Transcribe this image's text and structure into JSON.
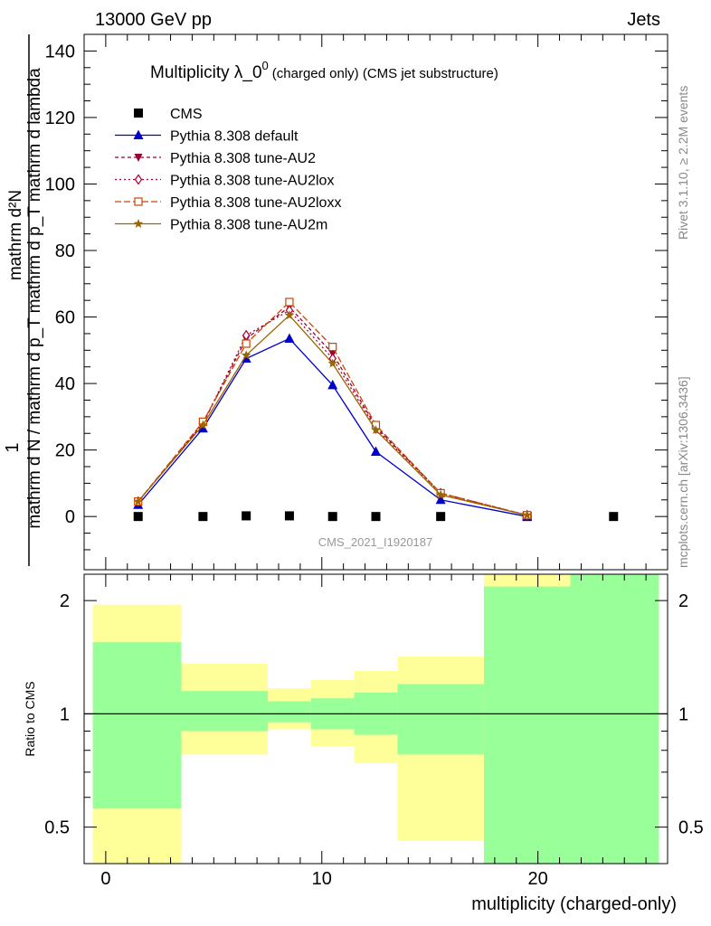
{
  "header": {
    "left": "13000 GeV pp",
    "right": "Jets"
  },
  "side_labels": {
    "rivet": "Rivet 3.1.10, ≥ 2.2M events",
    "mcplots": "mcplots.cern.ch [arXiv:1306.3436]"
  },
  "chart_data": [
    {
      "type": "line",
      "title_main": "Multiplicity λ_0",
      "title_sup": "0",
      "title_tail": "(charged only) (CMS jet substructure)",
      "analysis_id": "CMS_2021_I1920187",
      "ylabel": {
        "numerator": "mathrm d²N",
        "denominator": "mathrm d N / mathrm d p_T mathrm d p_T mathrm d lambda",
        "prefix": "1"
      },
      "ylim": [
        -16,
        145
      ],
      "yticks": [
        0,
        20,
        40,
        60,
        80,
        100,
        120,
        140
      ],
      "xlim": [
        -1,
        26
      ],
      "series": [
        {
          "name": "CMS",
          "color": "#000000",
          "marker": "square",
          "dash": "none",
          "x": [
            1.5,
            4.5,
            6.5,
            8.5,
            10.5,
            12.5,
            15.5,
            19.5,
            23.5
          ],
          "y": [
            0,
            0,
            0.2,
            0.2,
            0,
            0,
            0,
            0,
            0
          ]
        },
        {
          "name": "Pythia 8.308 default",
          "color": "#0000cc",
          "marker": "triangle-up",
          "dash": "solid",
          "x": [
            1.5,
            4.5,
            6.5,
            8.5,
            10.5,
            12.5,
            15.5,
            19.5
          ],
          "y": [
            3.5,
            26.5,
            47.5,
            53.5,
            39.5,
            19.5,
            5,
            0
          ]
        },
        {
          "name": "Pythia 8.308 tune-AU2",
          "color": "#990033",
          "marker": "triangle-down",
          "dash": "4,3",
          "x": [
            1.5,
            4.5,
            6.5,
            8.5,
            10.5,
            12.5,
            15.5,
            19.5
          ],
          "y": [
            4.5,
            28,
            53.5,
            63,
            49,
            27,
            7,
            0.4
          ]
        },
        {
          "name": "Pythia 8.308 tune-AU2lox",
          "color": "#aa0033",
          "marker": "diamond",
          "dash": "2,3",
          "x": [
            1.5,
            4.5,
            6.5,
            8.5,
            10.5,
            12.5,
            15.5,
            19.5
          ],
          "y": [
            4.5,
            28,
            54.5,
            62,
            47.5,
            26.5,
            7,
            0.4
          ]
        },
        {
          "name": "Pythia 8.308 tune-AU2loxx",
          "color": "#cc4400",
          "marker": "square-open",
          "dash": "7,3",
          "x": [
            1.5,
            4.5,
            6.5,
            8.5,
            10.5,
            12.5,
            15.5,
            19.5
          ],
          "y": [
            4.5,
            28.5,
            52,
            64.5,
            51,
            27.5,
            7,
            0.4
          ]
        },
        {
          "name": "Pythia 8.308 tune-AU2m",
          "color": "#996600",
          "marker": "star",
          "dash": "solid",
          "x": [
            1.5,
            4.5,
            6.5,
            8.5,
            10.5,
            12.5,
            15.5,
            19.5
          ],
          "y": [
            4.5,
            27.5,
            48.5,
            60.5,
            46,
            26,
            6.5,
            0.4
          ]
        }
      ]
    },
    {
      "type": "area",
      "ylabel": "Ratio to CMS",
      "xlabel": "multiplicity (charged-only)",
      "yscale": "log",
      "ylim": [
        0.4,
        2.35
      ],
      "yticks": [
        0.5,
        1,
        2
      ],
      "xticks": [
        0,
        10,
        20
      ],
      "xlim": [
        -1,
        26
      ],
      "reference_line": 1,
      "bands": [
        {
          "x0": -0.6,
          "x1": 3.5,
          "inner": [
            0.56,
            1.55
          ],
          "outer": [
            0.35,
            1.95
          ]
        },
        {
          "x0": 3.5,
          "x1": 7.5,
          "inner": [
            0.9,
            1.15
          ],
          "outer": [
            0.78,
            1.36
          ]
        },
        {
          "x0": 7.5,
          "x1": 9.5,
          "inner": [
            0.95,
            1.08
          ],
          "outer": [
            0.91,
            1.17
          ]
        },
        {
          "x0": 9.5,
          "x1": 11.5,
          "inner": [
            0.91,
            1.1
          ],
          "outer": [
            0.82,
            1.23
          ]
        },
        {
          "x0": 11.5,
          "x1": 13.5,
          "inner": [
            0.88,
            1.14
          ],
          "outer": [
            0.74,
            1.3
          ]
        },
        {
          "x0": 13.5,
          "x1": 17.5,
          "inner": [
            0.78,
            1.2
          ],
          "outer": [
            0.46,
            1.42
          ]
        },
        {
          "x0": 17.5,
          "x1": 21.5,
          "inner": [
            0.35,
            2.18
          ],
          "outer": [
            0.35,
            2.6
          ]
        },
        {
          "x0": 21.5,
          "x1": 25.6,
          "inner": [
            0.35,
            2.6
          ],
          "outer": [
            0.35,
            2.6
          ]
        }
      ],
      "colors": {
        "inner": "#99ff99",
        "outer": "#ffff99"
      }
    }
  ]
}
